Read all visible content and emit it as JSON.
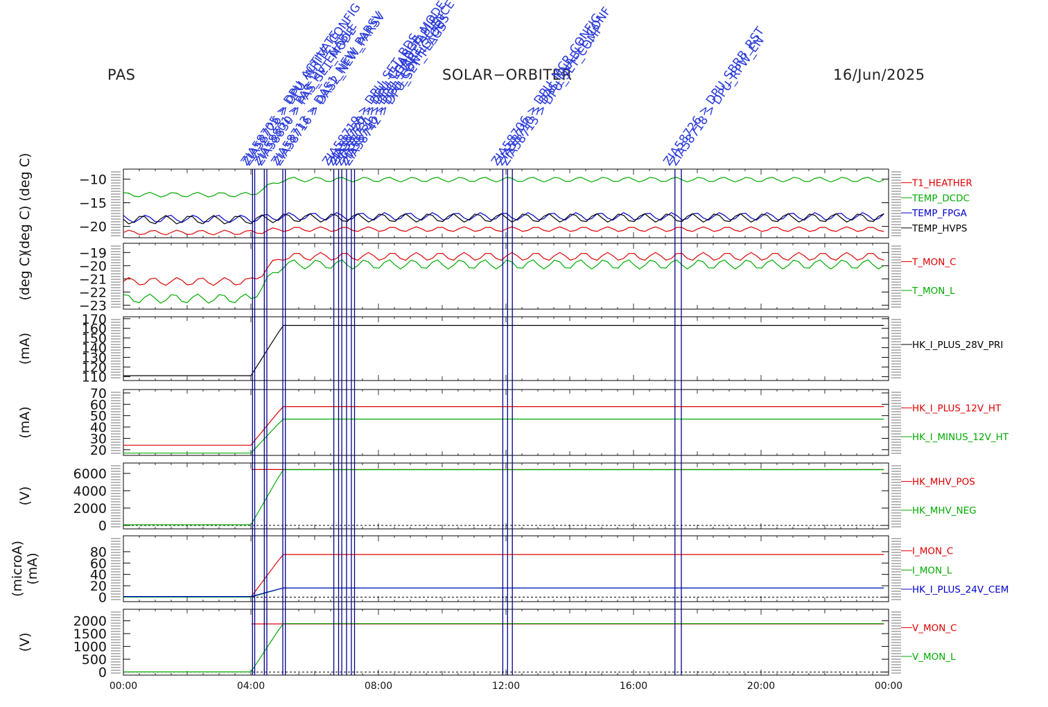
{
  "header": {
    "left": "PAS",
    "center": "SOLAR−ORBITER",
    "right": "16/Jun/2025"
  },
  "colors": {
    "red": "#dd0000",
    "green": "#00aa00",
    "blue": "#0000cc",
    "black": "#000000",
    "event_line": "#000088",
    "event_text": "#2a3ad8"
  },
  "chart_data": [
    {
      "type": "line",
      "ylabel": "(deg C)  (deg C)",
      "ylim": [
        -22.4,
        -7.9
      ],
      "ytick_labels": [
        "-10",
        "-15",
        "-20"
      ],
      "series": [
        {
          "name": "T1_HEATHER",
          "color": "red",
          "before_4h": -21.3,
          "after_4h": -20.6,
          "amplitude": 0.5
        },
        {
          "name": "TEMP_DCDC",
          "color": "green",
          "before_4h": -13.3,
          "after_4h": -10.1,
          "amplitude": 0.5
        },
        {
          "name": "TEMP_FPGA",
          "color": "blue",
          "before_4h": -18.4,
          "after_4h": -17.9,
          "amplitude": 0.8
        },
        {
          "name": "TEMP_HVPS",
          "color": "black",
          "before_4h": -18.6,
          "after_4h": -18.2,
          "amplitude": 0.9
        }
      ]
    },
    {
      "type": "line",
      "ylabel": "(deg C)",
      "ylim": [
        -23.3,
        -18.3
      ],
      "ytick_labels": [
        "-19",
        "-20",
        "-21",
        "-22",
        "-23"
      ],
      "series": [
        {
          "name": "T_MON_C",
          "color": "red",
          "before_4h": -21.2,
          "after_4h": -19.3,
          "amplitude": 0.3
        },
        {
          "name": "T_MON_L",
          "color": "green",
          "before_4h": -22.5,
          "after_4h": -19.9,
          "amplitude": 0.35
        }
      ]
    },
    {
      "type": "line",
      "ylabel": "(mA)",
      "ylim": [
        106,
        172
      ],
      "ytick_labels": [
        "170",
        "160",
        "150",
        "140",
        "130",
        "120",
        "110"
      ],
      "series": [
        {
          "name": "HK_I_PLUS_28V_PRI",
          "color": "black",
          "before_4h": 111,
          "after_4h": 163,
          "amplitude": 0
        }
      ]
    },
    {
      "type": "line",
      "ylabel": "(mA)",
      "ylim": [
        15,
        73
      ],
      "ytick_labels": [
        "70",
        "60",
        "50",
        "40",
        "30",
        "20"
      ],
      "series": [
        {
          "name": "HK_I_PLUS_12V_HT",
          "color": "red",
          "before_4h": 24,
          "after_4h": 58,
          "amplitude": 0
        },
        {
          "name": "HK_I_MINUS_12V_HT",
          "color": "green",
          "before_4h": 17,
          "after_4h": 47,
          "amplitude": 0
        }
      ]
    },
    {
      "type": "line",
      "ylabel": "(V)",
      "ylim": [
        -400,
        7200
      ],
      "ytick_labels": [
        "6000",
        "4000",
        "2000",
        "0"
      ],
      "series": [
        {
          "name": "HK_MHV_POS",
          "color": "red",
          "before_4h": null,
          "after_4h": 6450,
          "amplitude": 0
        },
        {
          "name": "HK_MHV_NEG",
          "color": "green",
          "before_4h": 70,
          "after_4h": 6430,
          "amplitude": 0
        }
      ]
    },
    {
      "type": "line",
      "ylabel": "(microA)\n(mA)",
      "ylim": [
        -8,
        108
      ],
      "ytick_labels": [
        "80",
        "60",
        "40",
        "20",
        "0"
      ],
      "series": [
        {
          "name": "I_MON_C",
          "color": "red",
          "before_4h": 0,
          "after_4h": 75,
          "amplitude": 0
        },
        {
          "name": "I_MON_L",
          "color": "green",
          "before_4h": 0,
          "after_4h": 16,
          "amplitude": 0
        },
        {
          "name": "HK_I_PLUS_24V_CEM",
          "color": "blue",
          "before_4h": 1,
          "after_4h": 16,
          "amplitude": 0
        }
      ]
    },
    {
      "type": "line",
      "ylabel": "(V)",
      "ylim": [
        -120,
        2450
      ],
      "ytick_labels": [
        "2000",
        "1500",
        "1000",
        "500",
        "0"
      ],
      "series": [
        {
          "name": "V_MON_C",
          "color": "red",
          "before_4h": null,
          "after_4h": 1880,
          "amplitude": 0
        },
        {
          "name": "V_MON_L",
          "color": "green",
          "before_4h": 5,
          "after_4h": 1890,
          "amplitude": 0
        }
      ]
    }
  ],
  "x_axis": {
    "xlim_hours": [
      0,
      24
    ],
    "tick_labels": [
      "00:00",
      "04:00",
      "08:00",
      "12:00",
      "16:00",
      "20:00",
      "00:00"
    ]
  },
  "events": {
    "times_hours": [
      4.05,
      4.12,
      4.42,
      4.5,
      5.0,
      5.08,
      6.6,
      6.75,
      6.85,
      7.0,
      7.15,
      7.25,
      11.9,
      12.05,
      12.2,
      17.3,
      17.5
    ],
    "labels": [
      "ZIA58705 > DPU_ACTIVATE",
      "ZIA58726 > DPU_WRITE_CONFIG",
      "ZIA58801 > PAS_HV_ENABLE",
      "ZIA58830 > PAS_SET_MODE",
      "ZIA58713 > DAS1_NEW_PARSV",
      "ZIA58716 > DAS2_NEW_PARSV",
      "ZIA58719 > DPU_SET_BDS",
      "ZIA58720 > DPU_CHANGE_MODE",
      "ZIA58727 > DPU_LOAD_TABLE",
      "ZIA58731 > DPU_START_SCIENCE",
      "ZIA58740 > DPU_CONFIG_OBS",
      "ZIA58742 > DPU_SET_FLAGS",
      "ZIA58706 > DPU_MCP_CONFIG",
      "ZIA58710 > DAS_ENABLE_CONF",
      "ZIA58713 > DPU_SET_COMP",
      "ZIA58726 > DPU_SBRB_RST",
      "ZIA58718 > DPU_RPW_EN"
    ]
  }
}
